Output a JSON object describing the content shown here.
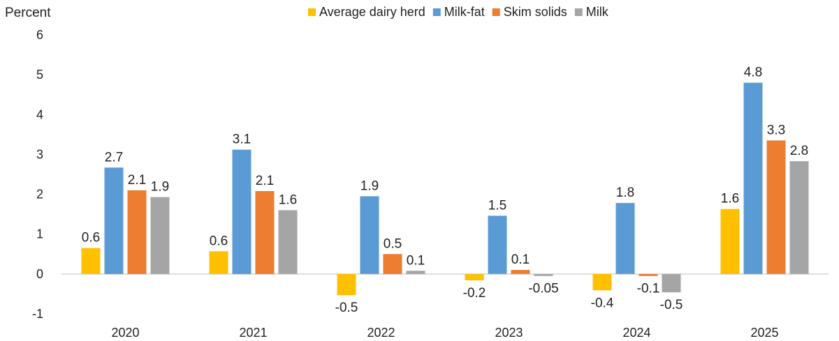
{
  "chart_data": {
    "type": "bar",
    "ylabel": "Percent",
    "ylim": [
      -1,
      6
    ],
    "yticks": [
      -1,
      0,
      1,
      2,
      3,
      4,
      5,
      6
    ],
    "categories": [
      "2020",
      "2021",
      "2022",
      "2023",
      "2024",
      "2025"
    ],
    "legend_position": "top",
    "grid": false,
    "series": [
      {
        "name": "Average dairy herd",
        "color": "#FFC000",
        "values": [
          0.65,
          0.57,
          -0.53,
          -0.16,
          -0.41,
          1.63
        ],
        "labels": [
          "0.6",
          "0.6",
          "-0.5",
          "-0.2",
          "-0.4",
          "1.6"
        ]
      },
      {
        "name": "Milk-fat",
        "color": "#5B9BD5",
        "values": [
          2.67,
          3.12,
          1.95,
          1.46,
          1.78,
          4.8
        ],
        "labels": [
          "2.7",
          "3.1",
          "1.9",
          "1.5",
          "1.8",
          "4.8"
        ]
      },
      {
        "name": "Skim solids",
        "color": "#ED7D31",
        "values": [
          2.1,
          2.08,
          0.5,
          0.1,
          -0.05,
          3.35
        ],
        "labels": [
          "2.1",
          "2.1",
          "0.5",
          "0.1",
          "-0.1",
          "3.3"
        ]
      },
      {
        "name": "Milk",
        "color": "#A5A5A5",
        "values": [
          1.93,
          1.6,
          0.08,
          -0.05,
          -0.46,
          2.83
        ],
        "labels": [
          "1.9",
          "1.6",
          "0.1",
          "-0.05",
          "-0.5",
          "2.8"
        ]
      }
    ]
  }
}
